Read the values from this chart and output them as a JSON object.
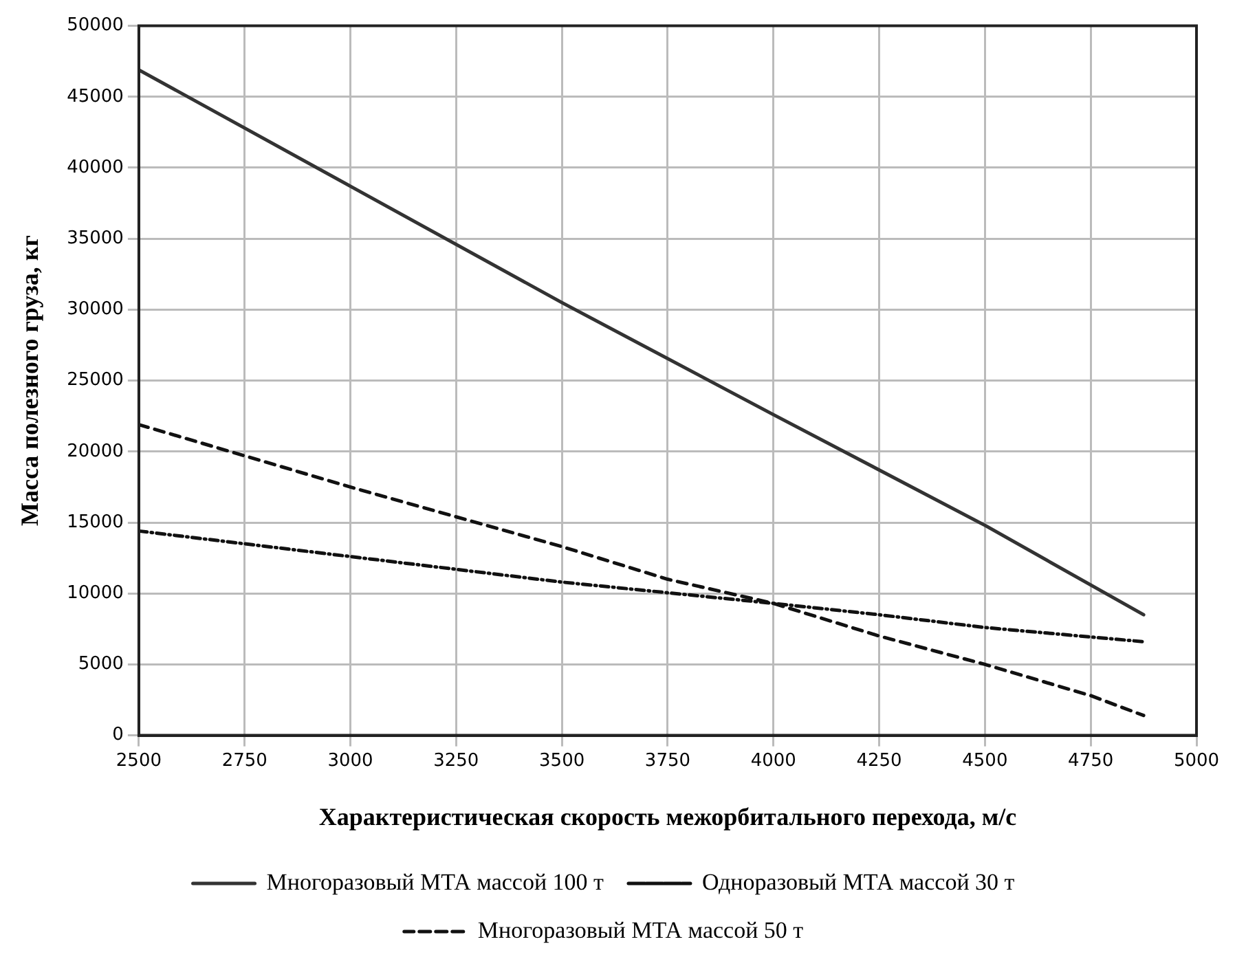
{
  "chart_data": {
    "type": "line",
    "xlabel": "Характеристическая скорость межорбитального перехода, м/с",
    "ylabel": "Масса полезного груза, кг",
    "xlim": [
      2500,
      5000
    ],
    "xticks": [
      2500,
      2750,
      3000,
      3250,
      3500,
      3750,
      4000,
      4250,
      4500,
      4750,
      5000
    ],
    "ylim": [
      0,
      50000
    ],
    "yticks": [
      0,
      5000,
      10000,
      15000,
      20000,
      25000,
      30000,
      35000,
      40000,
      45000,
      50000
    ],
    "grid": true,
    "legend": "bottom",
    "marker": "none",
    "series": [
      {
        "name": "Многоразовый МТА массой 100 т",
        "color": "#333333",
        "line_style": "solid",
        "x": [
          2500,
          3000,
          3500,
          4000,
          4500,
          4875
        ],
        "values": [
          46900,
          38700,
          30500,
          22600,
          14800,
          8500
        ]
      },
      {
        "name": "Одноразовый МТА массой 30 т",
        "color": "#111111",
        "line_style": "dashdot",
        "x": [
          2500,
          3000,
          3500,
          4000,
          4250,
          4500,
          4875
        ],
        "values": [
          14400,
          12600,
          10800,
          9300,
          8500,
          7600,
          6600
        ]
      },
      {
        "name": "Многоразовый МТА массой 50 т",
        "color": "#111111",
        "line_style": "dashed",
        "x": [
          2500,
          3000,
          3250,
          3500,
          3750,
          4000,
          4250,
          4500,
          4750,
          4875
        ],
        "values": [
          21900,
          17500,
          15400,
          13300,
          11000,
          9300,
          7000,
          5000,
          2800,
          1400
        ]
      }
    ]
  }
}
